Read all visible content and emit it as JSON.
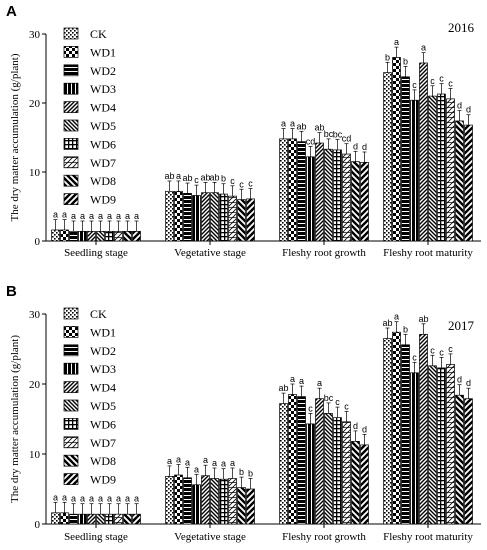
{
  "chart_data": [
    {
      "type": "bar",
      "panel_label": "A",
      "year": "2016",
      "ylabel": "The dry matter accumulation (g/plant)",
      "xlabel": "",
      "ylim": [
        0,
        30
      ],
      "yticks": [
        "0",
        "10",
        "20",
        "30"
      ],
      "categories": [
        "Seedling stage",
        "Vegetative stage",
        "Fleshy root growth",
        "Fleshy root maturity"
      ],
      "series": [
        {
          "name": "CK",
          "values": [
            1.6,
            7.2,
            14.8,
            24.4
          ],
          "labels": [
            "a",
            "ab",
            "a",
            "b"
          ]
        },
        {
          "name": "WD1",
          "values": [
            1.6,
            7.2,
            14.8,
            26.6
          ],
          "labels": [
            "a",
            "a",
            "a",
            "a"
          ]
        },
        {
          "name": "WD2",
          "values": [
            1.4,
            6.9,
            14.4,
            23.8
          ],
          "labels": [
            "a",
            "ab",
            "ab",
            "b"
          ]
        },
        {
          "name": "WD3",
          "values": [
            1.4,
            6.6,
            12.2,
            20.4
          ],
          "labels": [
            "a",
            "c",
            "cd",
            "c"
          ]
        },
        {
          "name": "WD4",
          "values": [
            1.4,
            7.0,
            14.2,
            25.8
          ],
          "labels": [
            "a",
            "ab",
            "ab",
            "a"
          ]
        },
        {
          "name": "WD5",
          "values": [
            1.4,
            7.0,
            13.3,
            21.0
          ],
          "labels": [
            "a",
            "ab",
            "bc",
            "c"
          ]
        },
        {
          "name": "WD6",
          "values": [
            1.4,
            6.8,
            13.2,
            21.3
          ],
          "labels": [
            "a",
            "b",
            "bc",
            "c"
          ]
        },
        {
          "name": "WD7",
          "values": [
            1.4,
            6.5,
            12.6,
            20.6
          ],
          "labels": [
            "a",
            "c",
            "cd",
            "c"
          ]
        },
        {
          "name": "WD8",
          "values": [
            1.4,
            6.0,
            11.5,
            17.4
          ],
          "labels": [
            "a",
            "c",
            "d",
            "d"
          ]
        },
        {
          "name": "WD9",
          "values": [
            1.4,
            6.1,
            11.4,
            16.8
          ],
          "labels": [
            "a",
            "c",
            "d",
            "d"
          ]
        }
      ],
      "legend_position": "top-left",
      "grid": false
    },
    {
      "type": "bar",
      "panel_label": "B",
      "year": "2017",
      "ylabel": "The dry matter accumulation (g/plant)",
      "xlabel": "",
      "ylim": [
        0,
        30
      ],
      "yticks": [
        "0",
        "10",
        "20",
        "30"
      ],
      "categories": [
        "Seedling stage",
        "Vegetative stage",
        "Fleshy root growth",
        "Fleshy root maturity"
      ],
      "series": [
        {
          "name": "CK",
          "values": [
            1.6,
            6.8,
            17.2,
            26.5
          ],
          "labels": [
            "a",
            "a",
            "ab",
            "ab"
          ]
        },
        {
          "name": "WD1",
          "values": [
            1.6,
            7.0,
            18.5,
            27.4
          ],
          "labels": [
            "a",
            "a",
            "a",
            "a"
          ]
        },
        {
          "name": "WD2",
          "values": [
            1.4,
            6.6,
            18.2,
            25.6
          ],
          "labels": [
            "a",
            "a",
            "a",
            "b"
          ]
        },
        {
          "name": "WD3",
          "values": [
            1.4,
            5.6,
            14.3,
            21.6
          ],
          "labels": [
            "a",
            "a",
            "c",
            "c"
          ]
        },
        {
          "name": "WD4",
          "values": [
            1.4,
            6.9,
            17.9,
            27.1
          ],
          "labels": [
            "a",
            "a",
            "a",
            "ab"
          ]
        },
        {
          "name": "WD5",
          "values": [
            1.4,
            6.5,
            15.8,
            22.6
          ],
          "labels": [
            "a",
            "a",
            "bc",
            "c"
          ]
        },
        {
          "name": "WD6",
          "values": [
            1.4,
            6.4,
            15.2,
            22.3
          ],
          "labels": [
            "a",
            "a",
            "c",
            "c"
          ]
        },
        {
          "name": "WD7",
          "values": [
            1.4,
            6.5,
            14.6,
            22.8
          ],
          "labels": [
            "a",
            "a",
            "c",
            "c"
          ]
        },
        {
          "name": "WD8",
          "values": [
            1.4,
            5.2,
            11.8,
            18.4
          ],
          "labels": [
            "a",
            "b",
            "d",
            "d"
          ]
        },
        {
          "name": "WD9",
          "values": [
            1.4,
            5.0,
            11.3,
            17.9
          ],
          "labels": [
            "a",
            "b",
            "d",
            "d"
          ]
        }
      ],
      "legend_position": "top-left",
      "grid": false
    }
  ]
}
